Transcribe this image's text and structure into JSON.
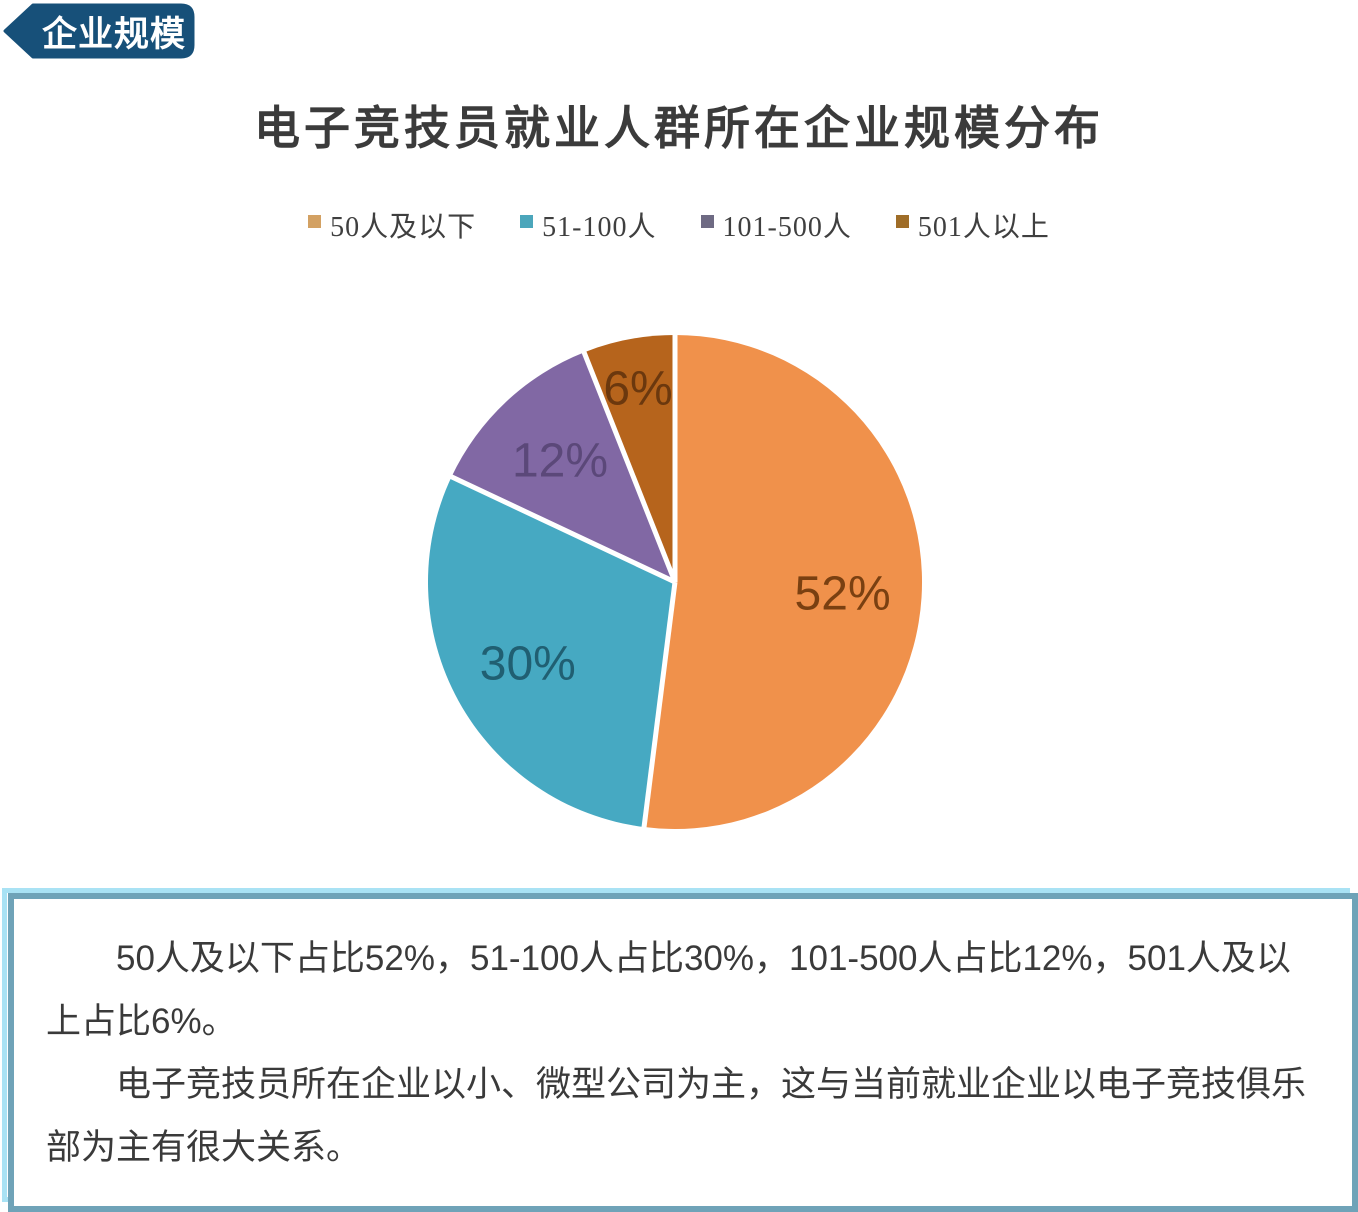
{
  "badge": {
    "label": "企业规模",
    "bg_color": "#175079",
    "text_color": "#ffffff"
  },
  "chart_data": {
    "type": "pie",
    "title": "电子竞技员就业人群所在企业规模分布",
    "legend_position": "top",
    "direction": "clockwise",
    "start_angle_deg": 0,
    "categories": [
      "50人及以下",
      "51-100人",
      "101-500人",
      "501人以上"
    ],
    "values": [
      52,
      30,
      12,
      6
    ],
    "value_suffix": "%",
    "slice_labels": [
      "52%",
      "30%",
      "12%",
      "6%"
    ],
    "slice_colors": [
      "#F0914B",
      "#46A9C2",
      "#8168A4",
      "#B6641C"
    ],
    "legend_swatch_colors": [
      "#D3A163",
      "#4BA6BB",
      "#6E6A83",
      "#9F6D28"
    ],
    "slice_label_colors": [
      "#7A4011",
      "#205F72",
      "#5B4879",
      "#6B380E"
    ],
    "separator_color": "#ffffff"
  },
  "note_box": {
    "paragraphs": [
      "50人及以下占比52%，51-100人占比30%，101-500人占比12%，501人及以上占比6%。",
      "电子竞技员所在企业以小、微型公司为主，这与当前就业企业以电子竞技俱乐部为主有很大关系。"
    ],
    "outer_border_color": "#a9e2f4",
    "inner_border_color": "#6fa3b8",
    "text_color": "#3a3a3a"
  }
}
